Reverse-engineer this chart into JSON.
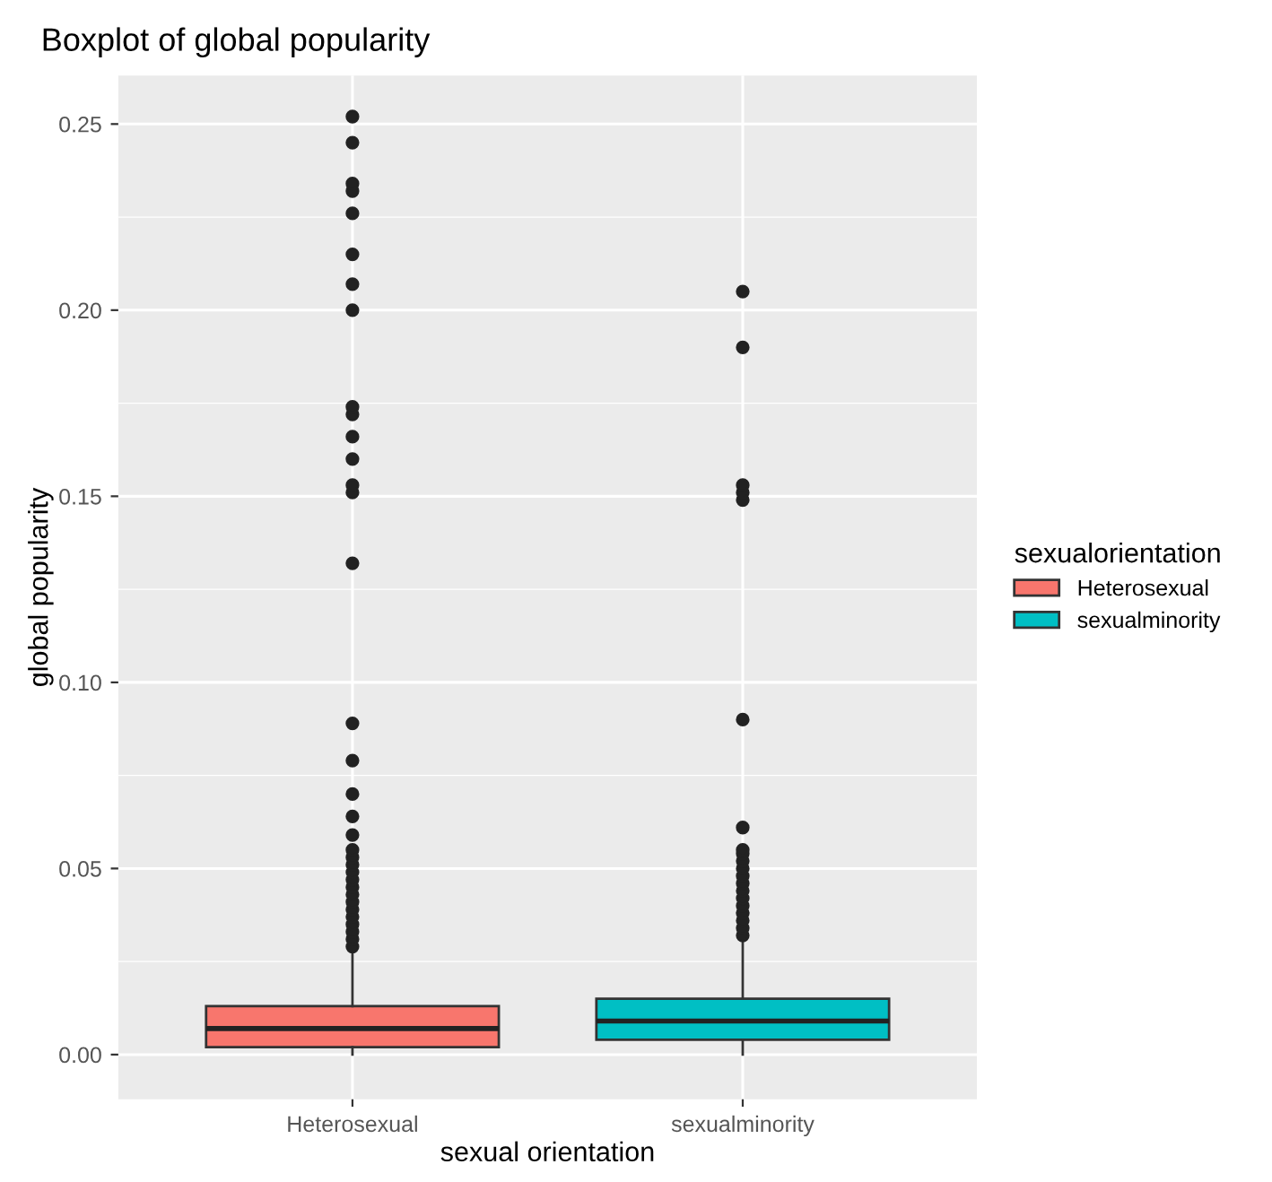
{
  "chart_data": {
    "type": "box",
    "title": "Boxplot of global popularity",
    "xlabel": "sexual orientation",
    "ylabel": "global popularity",
    "legend_title": "sexualorientation",
    "categories": [
      "Heterosexual",
      "sexualminority"
    ],
    "series": [
      {
        "name": "Heterosexual",
        "color": "#f8766d",
        "boxes": [
          {
            "low": 0.0,
            "q1": 0.002,
            "median": 0.007,
            "q3": 0.013,
            "high": 0.028,
            "outliers": [
              0.029,
              0.031,
              0.033,
              0.035,
              0.037,
              0.039,
              0.041,
              0.043,
              0.045,
              0.047,
              0.049,
              0.051,
              0.053,
              0.055,
              0.059,
              0.064,
              0.07,
              0.079,
              0.089,
              0.132,
              0.151,
              0.153,
              0.16,
              0.166,
              0.172,
              0.174,
              0.2,
              0.207,
              0.215,
              0.226,
              0.232,
              0.234,
              0.245,
              0.252
            ]
          },
          null
        ]
      },
      {
        "name": "sexualminority",
        "color": "#00bfc4",
        "boxes": [
          null,
          {
            "low": 0.0,
            "q1": 0.004,
            "median": 0.009,
            "q3": 0.015,
            "high": 0.031,
            "outliers": [
              0.032,
              0.034,
              0.036,
              0.038,
              0.04,
              0.042,
              0.044,
              0.046,
              0.048,
              0.05,
              0.052,
              0.054,
              0.055,
              0.061,
              0.09,
              0.149,
              0.151,
              0.153,
              0.19,
              0.205
            ]
          }
        ]
      }
    ],
    "ylim": [
      -0.012,
      0.263
    ],
    "yticks": [
      {
        "value": 0,
        "label": "0.00"
      },
      {
        "value": 0.05,
        "label": "0.05"
      },
      {
        "value": 0.1,
        "label": "0.10"
      },
      {
        "value": 0.15,
        "label": "0.15"
      },
      {
        "value": 0.2,
        "label": "0.20"
      },
      {
        "value": 0.25,
        "label": "0.25"
      }
    ],
    "grid": true,
    "legend": "right"
  }
}
